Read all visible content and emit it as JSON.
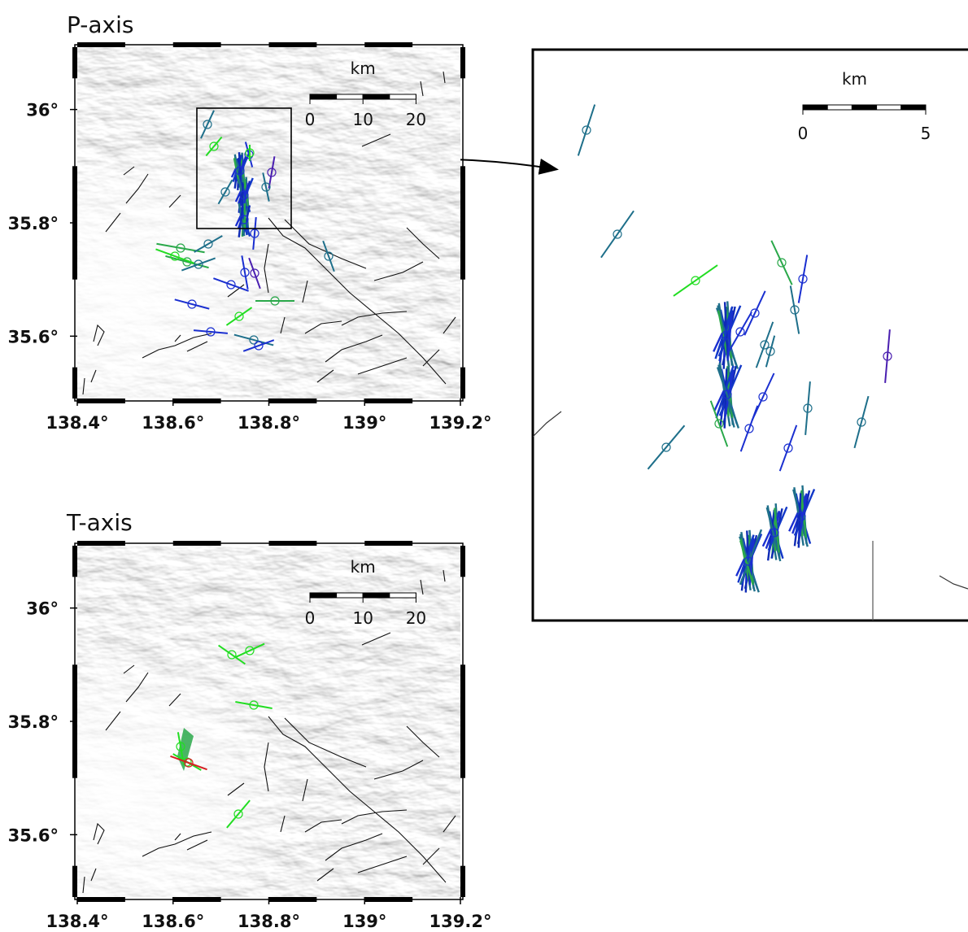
{
  "panels": [
    {
      "title": "P-axis",
      "xlim": [
        138.4,
        139.2
      ],
      "ylim": [
        35.49,
        36.11
      ],
      "xticks": [
        {
          "value": 138.4,
          "label": "138.4°"
        },
        {
          "value": 138.6,
          "label": "138.6°"
        },
        {
          "value": 138.8,
          "label": "138.8°"
        },
        {
          "value": 139,
          "label": "139°"
        },
        {
          "value": 139.2,
          "label": "139.2°"
        }
      ],
      "yticks": [
        {
          "value": 35.6,
          "label": "35.6°"
        },
        {
          "value": 35.8,
          "label": "35.8°"
        },
        {
          "value": 36,
          "label": "36°"
        }
      ],
      "scale": {
        "unit": "km",
        "ticks": [
          0,
          10,
          20
        ]
      }
    },
    {
      "title": "T-axis",
      "xlim": [
        138.4,
        139.2
      ],
      "ylim": [
        35.49,
        36.11
      ],
      "xticks": [
        {
          "value": 138.4,
          "label": "138.4°"
        },
        {
          "value": 138.6,
          "label": "138.6°"
        },
        {
          "value": 138.8,
          "label": "138.8°"
        },
        {
          "value": 139,
          "label": "139°"
        },
        {
          "value": 139.2,
          "label": "139.2°"
        }
      ],
      "yticks": [
        {
          "value": 35.6,
          "label": "35.6°"
        },
        {
          "value": 35.8,
          "label": "35.8°"
        },
        {
          "value": 36,
          "label": "36°"
        }
      ],
      "scale": {
        "unit": "km",
        "ticks": [
          0,
          10,
          20
        ]
      }
    }
  ],
  "inset": {
    "scale": {
      "unit": "km",
      "ticks": [
        0,
        5
      ]
    }
  }
}
